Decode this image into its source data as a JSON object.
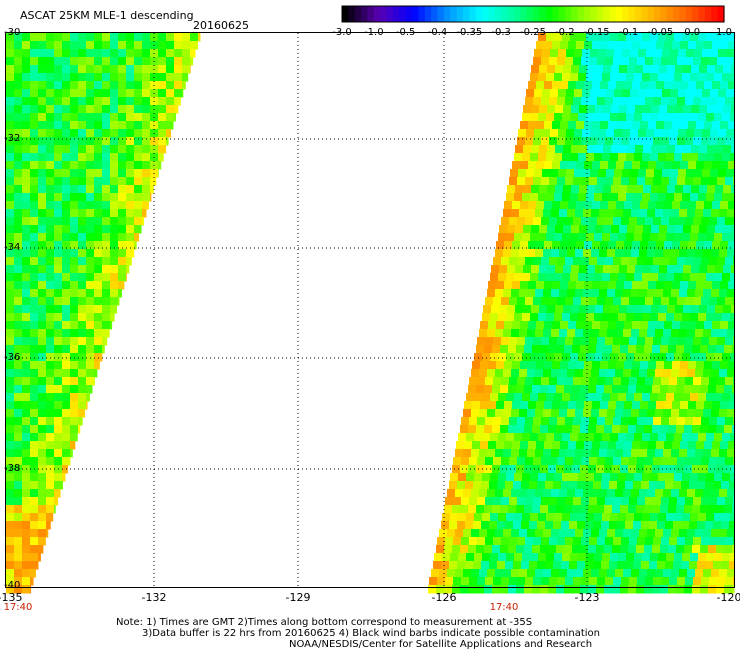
{
  "header": {
    "title": "ASCAT 25KM MLE-1 descending",
    "date": "20160625"
  },
  "colorbar": {
    "labels": [
      "-3.0",
      "-1.0",
      "-0.5",
      "-0.4",
      "-0.35",
      "-0.3",
      "-0.25",
      "-0.2",
      "-0.15",
      "-0.1",
      "-0.05",
      "0.0",
      "1.0"
    ],
    "colors": [
      "#000000",
      "#5a00b4",
      "#0000ff",
      "#0096ff",
      "#00ffff",
      "#00ff96",
      "#00ff00",
      "#96ff00",
      "#ffff00",
      "#ffb400",
      "#ff6400",
      "#ff0000"
    ]
  },
  "axes": {
    "lat_labels": [
      "-30",
      "-32",
      "-34",
      "-36",
      "-38",
      "-40"
    ],
    "lon_labels": [
      "-135",
      "-132",
      "-129",
      "-126",
      "-123",
      "-120"
    ],
    "lon_range": [
      -135,
      -120
    ],
    "lat_range": [
      -30,
      -40
    ]
  },
  "times": [
    "17:40",
    "17:40"
  ],
  "notes": {
    "line1": "Note: 1) Times are GMT 2)Times along bottom correspond to measurement at -35S",
    "line2": "3)Data buffer is 22 hrs from 20160625 4) Black wind barbs indicate possible contamination",
    "line3": "NOAA/NESDIS/Center for Satellite Applications and Research"
  }
}
